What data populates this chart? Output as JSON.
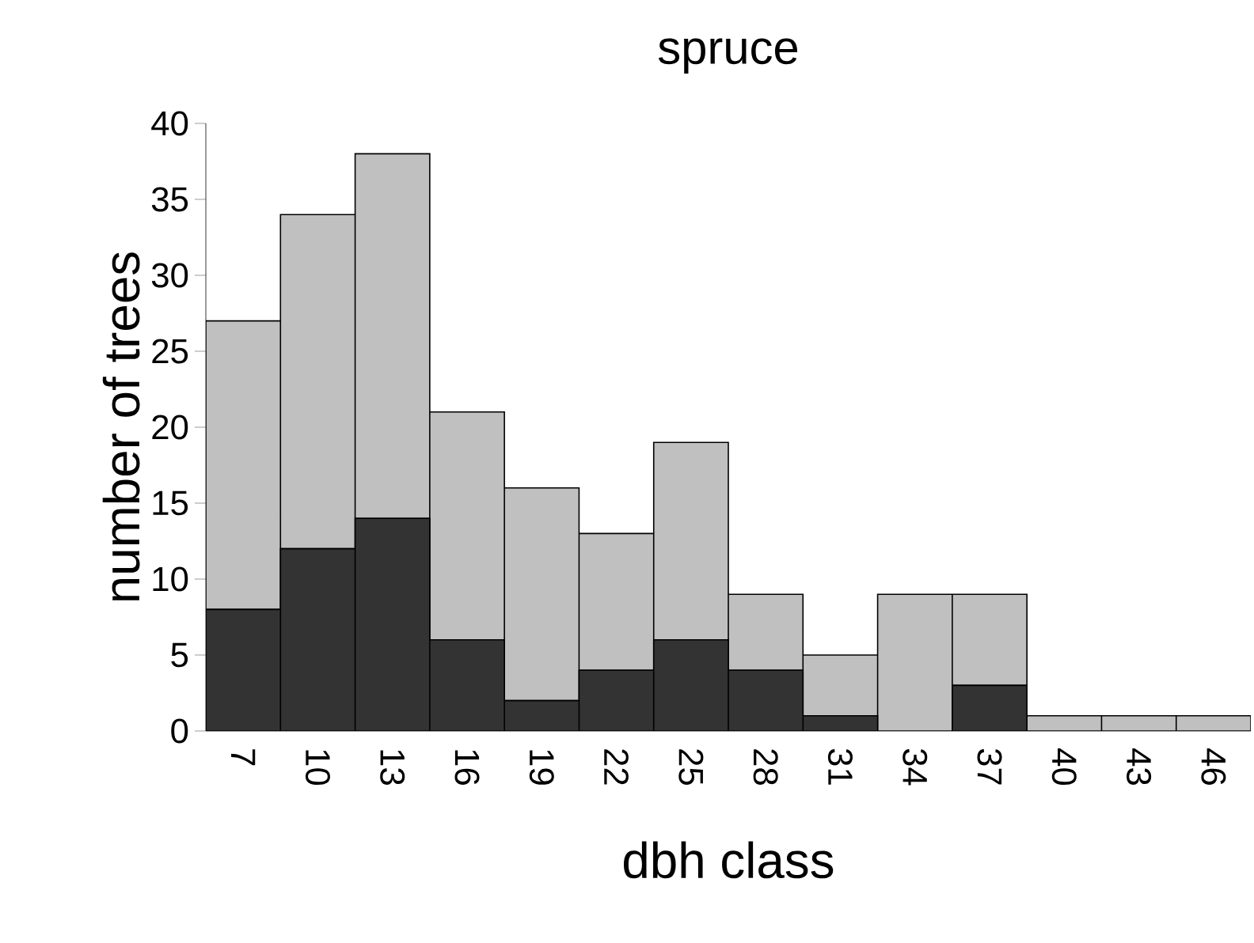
{
  "chart_data": {
    "type": "bar",
    "stacked": true,
    "title": "spruce",
    "xlabel": "dbh class",
    "ylabel": "number of trees",
    "categories": [
      "7",
      "10",
      "13",
      "16",
      "19",
      "22",
      "25",
      "28",
      "31",
      "34",
      "37",
      "40",
      "43",
      "46"
    ],
    "series": [
      {
        "color": "#333333",
        "values": [
          8,
          12,
          14,
          6,
          2,
          4,
          6,
          4,
          1,
          0,
          3,
          0,
          0,
          0
        ]
      },
      {
        "color": "#c0c0c0",
        "values": [
          19,
          22,
          24,
          15,
          14,
          9,
          13,
          5,
          4,
          9,
          6,
          1,
          1,
          1
        ]
      }
    ],
    "ylim": [
      0,
      40
    ],
    "yticks": [
      0,
      5,
      10,
      15,
      20,
      25,
      30,
      35,
      40
    ]
  }
}
